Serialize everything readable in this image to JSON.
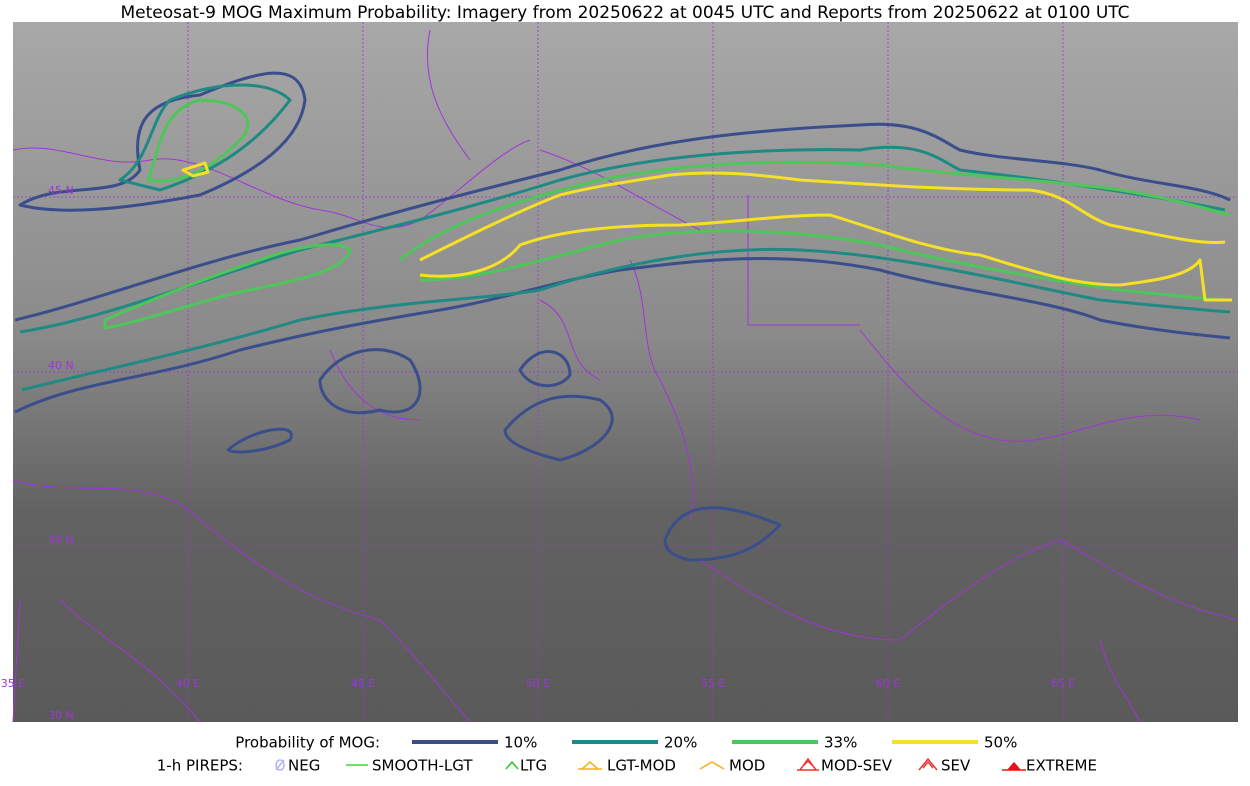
{
  "header": {
    "title": "Meteosat-9 MOG Maximum Probability: Imagery from 20250622 at 0045 UTC and Reports from 20250622 at 0100 UTC"
  },
  "map": {
    "lat_labels": [
      "45 N",
      "40 N",
      "35 N",
      "30 N"
    ],
    "lon_labels": [
      "35 E",
      "40 E",
      "45 E",
      "50 E",
      "55 E",
      "60 E",
      "65 E"
    ]
  },
  "legend": {
    "probability": {
      "title": "Probability of MOG:",
      "items": [
        {
          "label": "10%",
          "color": "#3a4e8c"
        },
        {
          "label": "20%",
          "color": "#1f8a84"
        },
        {
          "label": "33%",
          "color": "#4ec65a"
        },
        {
          "label": "50%",
          "color": "#f5e026"
        }
      ]
    },
    "pireps": {
      "title": "1-h PIREPS:",
      "items": [
        {
          "label": "NEG",
          "color": "#b0b0ff"
        },
        {
          "label": "SMOOTH-LGT",
          "color": "#33dd33"
        },
        {
          "label": "LTG",
          "color": "#22cc22"
        },
        {
          "label": "LGT-MOD",
          "color": "#f0b020"
        },
        {
          "label": "MOD",
          "color": "#f0b020"
        },
        {
          "label": "MOD-SEV",
          "color": "#ee3333"
        },
        {
          "label": "SEV",
          "color": "#ee3333"
        },
        {
          "label": "EXTREME",
          "color": "#ee1111"
        }
      ]
    }
  }
}
